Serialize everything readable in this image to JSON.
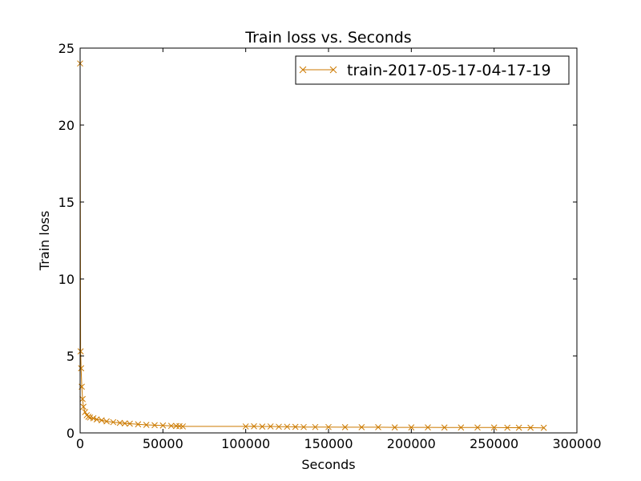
{
  "chart_data": {
    "type": "line",
    "title": "Train loss  vs. Seconds",
    "xlabel": "Seconds",
    "ylabel": "Train loss",
    "xlim": [
      0,
      300000
    ],
    "ylim": [
      0,
      25
    ],
    "xticks": [
      0,
      50000,
      100000,
      150000,
      200000,
      250000,
      300000
    ],
    "yticks": [
      0,
      5,
      10,
      15,
      20,
      25
    ],
    "xtick_labels": [
      "0",
      "50000",
      "100000",
      "150000",
      "200000",
      "250000",
      "300000"
    ],
    "ytick_labels": [
      "0",
      "5",
      "10",
      "15",
      "20",
      "25"
    ],
    "grid": false,
    "legend": "top-right",
    "marker": "x",
    "colors": {
      "series": "#cc7a00"
    },
    "series": [
      {
        "name": "train-2017-05-17-04-17-19",
        "x": [
          0,
          300,
          600,
          1000,
          1500,
          2000,
          3000,
          4000,
          5000,
          6000,
          8000,
          10000,
          13000,
          16000,
          20000,
          24000,
          27000,
          30000,
          35000,
          40000,
          45000,
          50000,
          55000,
          58000,
          60000,
          62000,
          100000,
          105000,
          110000,
          115000,
          120000,
          125000,
          130000,
          135000,
          142000,
          150000,
          160000,
          170000,
          180000,
          190000,
          200000,
          210000,
          220000,
          230000,
          240000,
          250000,
          258000,
          265000,
          272000,
          280000
        ],
        "y": [
          24.0,
          5.3,
          4.2,
          3.0,
          2.2,
          1.7,
          1.35,
          1.15,
          1.05,
          1.0,
          0.95,
          0.88,
          0.82,
          0.75,
          0.7,
          0.65,
          0.62,
          0.6,
          0.56,
          0.52,
          0.5,
          0.48,
          0.46,
          0.45,
          0.44,
          0.42,
          0.42,
          0.43,
          0.41,
          0.42,
          0.4,
          0.4,
          0.39,
          0.38,
          0.38,
          0.38,
          0.37,
          0.37,
          0.37,
          0.36,
          0.36,
          0.36,
          0.35,
          0.35,
          0.35,
          0.35,
          0.34,
          0.34,
          0.34,
          0.33
        ]
      }
    ]
  }
}
